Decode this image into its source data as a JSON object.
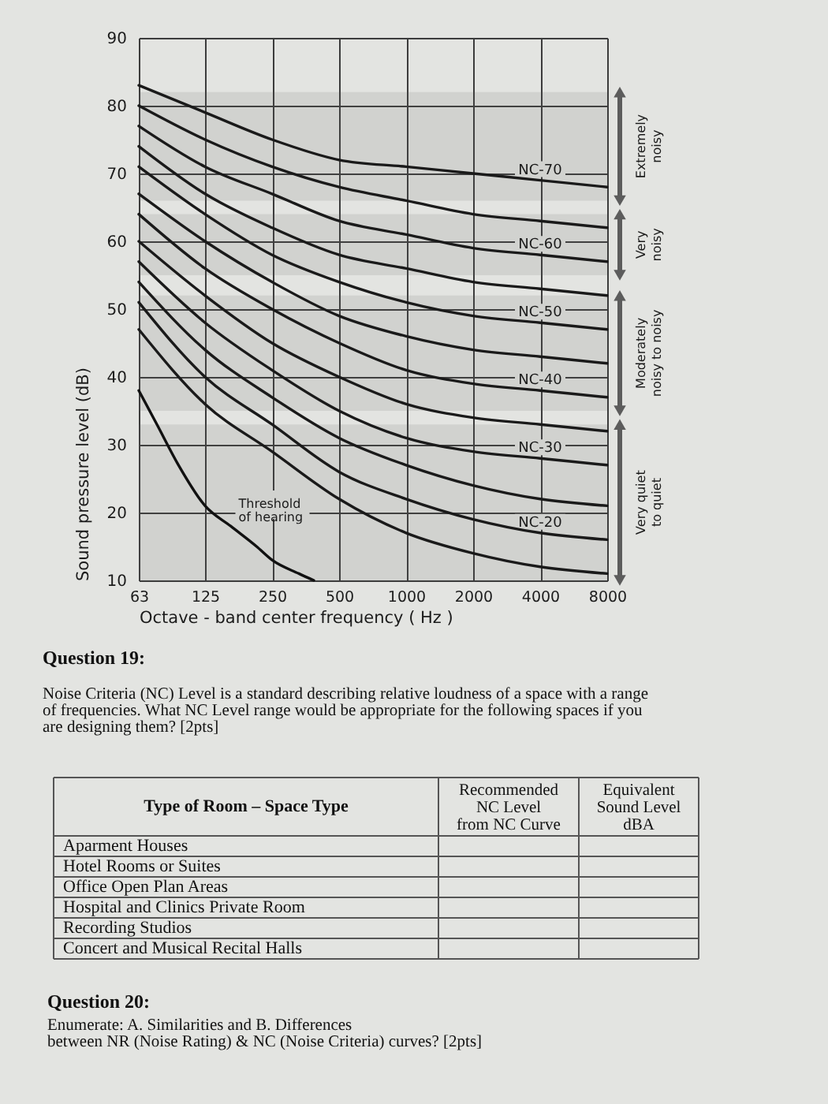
{
  "chart_data": {
    "type": "line",
    "xlabel": "Octave - band center frequency ( Hz )",
    "ylabel": "Sound pressure level (dB)",
    "x": [
      63,
      125,
      250,
      500,
      1000,
      2000,
      4000,
      8000
    ],
    "xlim": [
      63,
      8000
    ],
    "xticks": [
      63,
      125,
      250,
      500,
      1000,
      2000,
      4000,
      8000
    ],
    "ylim": [
      10,
      90
    ],
    "yticks": [
      10,
      20,
      30,
      40,
      50,
      60,
      70,
      80,
      90
    ],
    "log": "x",
    "grid": true,
    "series": [
      {
        "name": "NC-70",
        "color": "#1a1a1a",
        "values": [
          83,
          79,
          75,
          72,
          71,
          70,
          69,
          68
        ]
      },
      {
        "color": "#1a1a1a",
        "values": [
          80,
          75,
          71,
          68,
          66,
          64,
          63,
          62
        ]
      },
      {
        "name": "NC-60",
        "color": "#1a1a1a",
        "values": [
          77,
          71,
          67,
          63,
          61,
          59,
          58,
          57
        ]
      },
      {
        "color": "#1a1a1a",
        "values": [
          74,
          67,
          62,
          58,
          56,
          54,
          53,
          52
        ]
      },
      {
        "name": "NC-50",
        "color": "#1a1a1a",
        "values": [
          71,
          64,
          58,
          54,
          51,
          49,
          48,
          47
        ]
      },
      {
        "color": "#1a1a1a",
        "values": [
          67,
          60,
          54,
          49,
          46,
          44,
          43,
          42
        ]
      },
      {
        "name": "NC-40",
        "color": "#1a1a1a",
        "values": [
          64,
          56,
          50,
          45,
          41,
          39,
          38,
          37
        ]
      },
      {
        "color": "#1a1a1a",
        "values": [
          60,
          52,
          45,
          40,
          36,
          34,
          33,
          32
        ]
      },
      {
        "name": "NC-30",
        "color": "#1a1a1a",
        "values": [
          57,
          48,
          41,
          35,
          31,
          29,
          28,
          27
        ]
      },
      {
        "color": "#1a1a1a",
        "values": [
          54,
          44,
          37,
          31,
          27,
          24,
          22,
          21
        ]
      },
      {
        "name": "NC-20",
        "color": "#1a1a1a",
        "values": [
          51,
          40,
          33,
          26,
          22,
          19,
          17,
          16
        ]
      },
      {
        "color": "#1a1a1a",
        "values": [
          47,
          36,
          29,
          22,
          17,
          14,
          12,
          11
        ]
      },
      {
        "color": "#111111",
        "x": [
          63,
          76,
          95,
          125,
          163,
          213,
          250,
          330,
          385
        ],
        "values": [
          38,
          33,
          27,
          21,
          18,
          15,
          13,
          11,
          10
        ]
      }
    ],
    "bands": [
      {
        "axis": "y",
        "from": 66,
        "to": 82,
        "label": "Extremely\nnoisy",
        "color": "#5c5c5c"
      },
      {
        "axis": "y",
        "from": 55,
        "to": 64,
        "label": "Very\nnoisy",
        "color": "#5c5c5c"
      },
      {
        "axis": "y",
        "from": 35,
        "to": 52,
        "label": "Moderately\nnoisy to noisy",
        "color": "#5c5c5c"
      },
      {
        "axis": "y",
        "from": 10,
        "to": 33,
        "label": "Very quiet\nto quiet",
        "color": "#5c5c5c"
      }
    ],
    "annotations": [
      {
        "text": "Threshold\nof hearing",
        "x": 143,
        "y": 20
      },
      "Question 19:",
      "Noise Criteria (NC) Level is a standard describing relative loudness of a space with a range\nof frequencies. What NC Level range would be appropriate for the following spaces if you\nare designing them? [2pts]",
      "Type of Room – Space Type",
      "Recommended\nNC Level\nfrom NC Curve",
      "Equivalent\nSound Level\ndBA",
      "Aparment Houses",
      "Hotel Rooms or Suites",
      "Office Open Plan Areas",
      "Hospital and Clinics Private Room",
      "Recording Studios",
      "Concert and Musical Recital Halls",
      "Question 20:",
      "Enumerate: A. Similarities and B. Differences\nbetween NR (Noise Rating) & NC (Noise Criteria) curves? [2pts]"
    ]
  }
}
